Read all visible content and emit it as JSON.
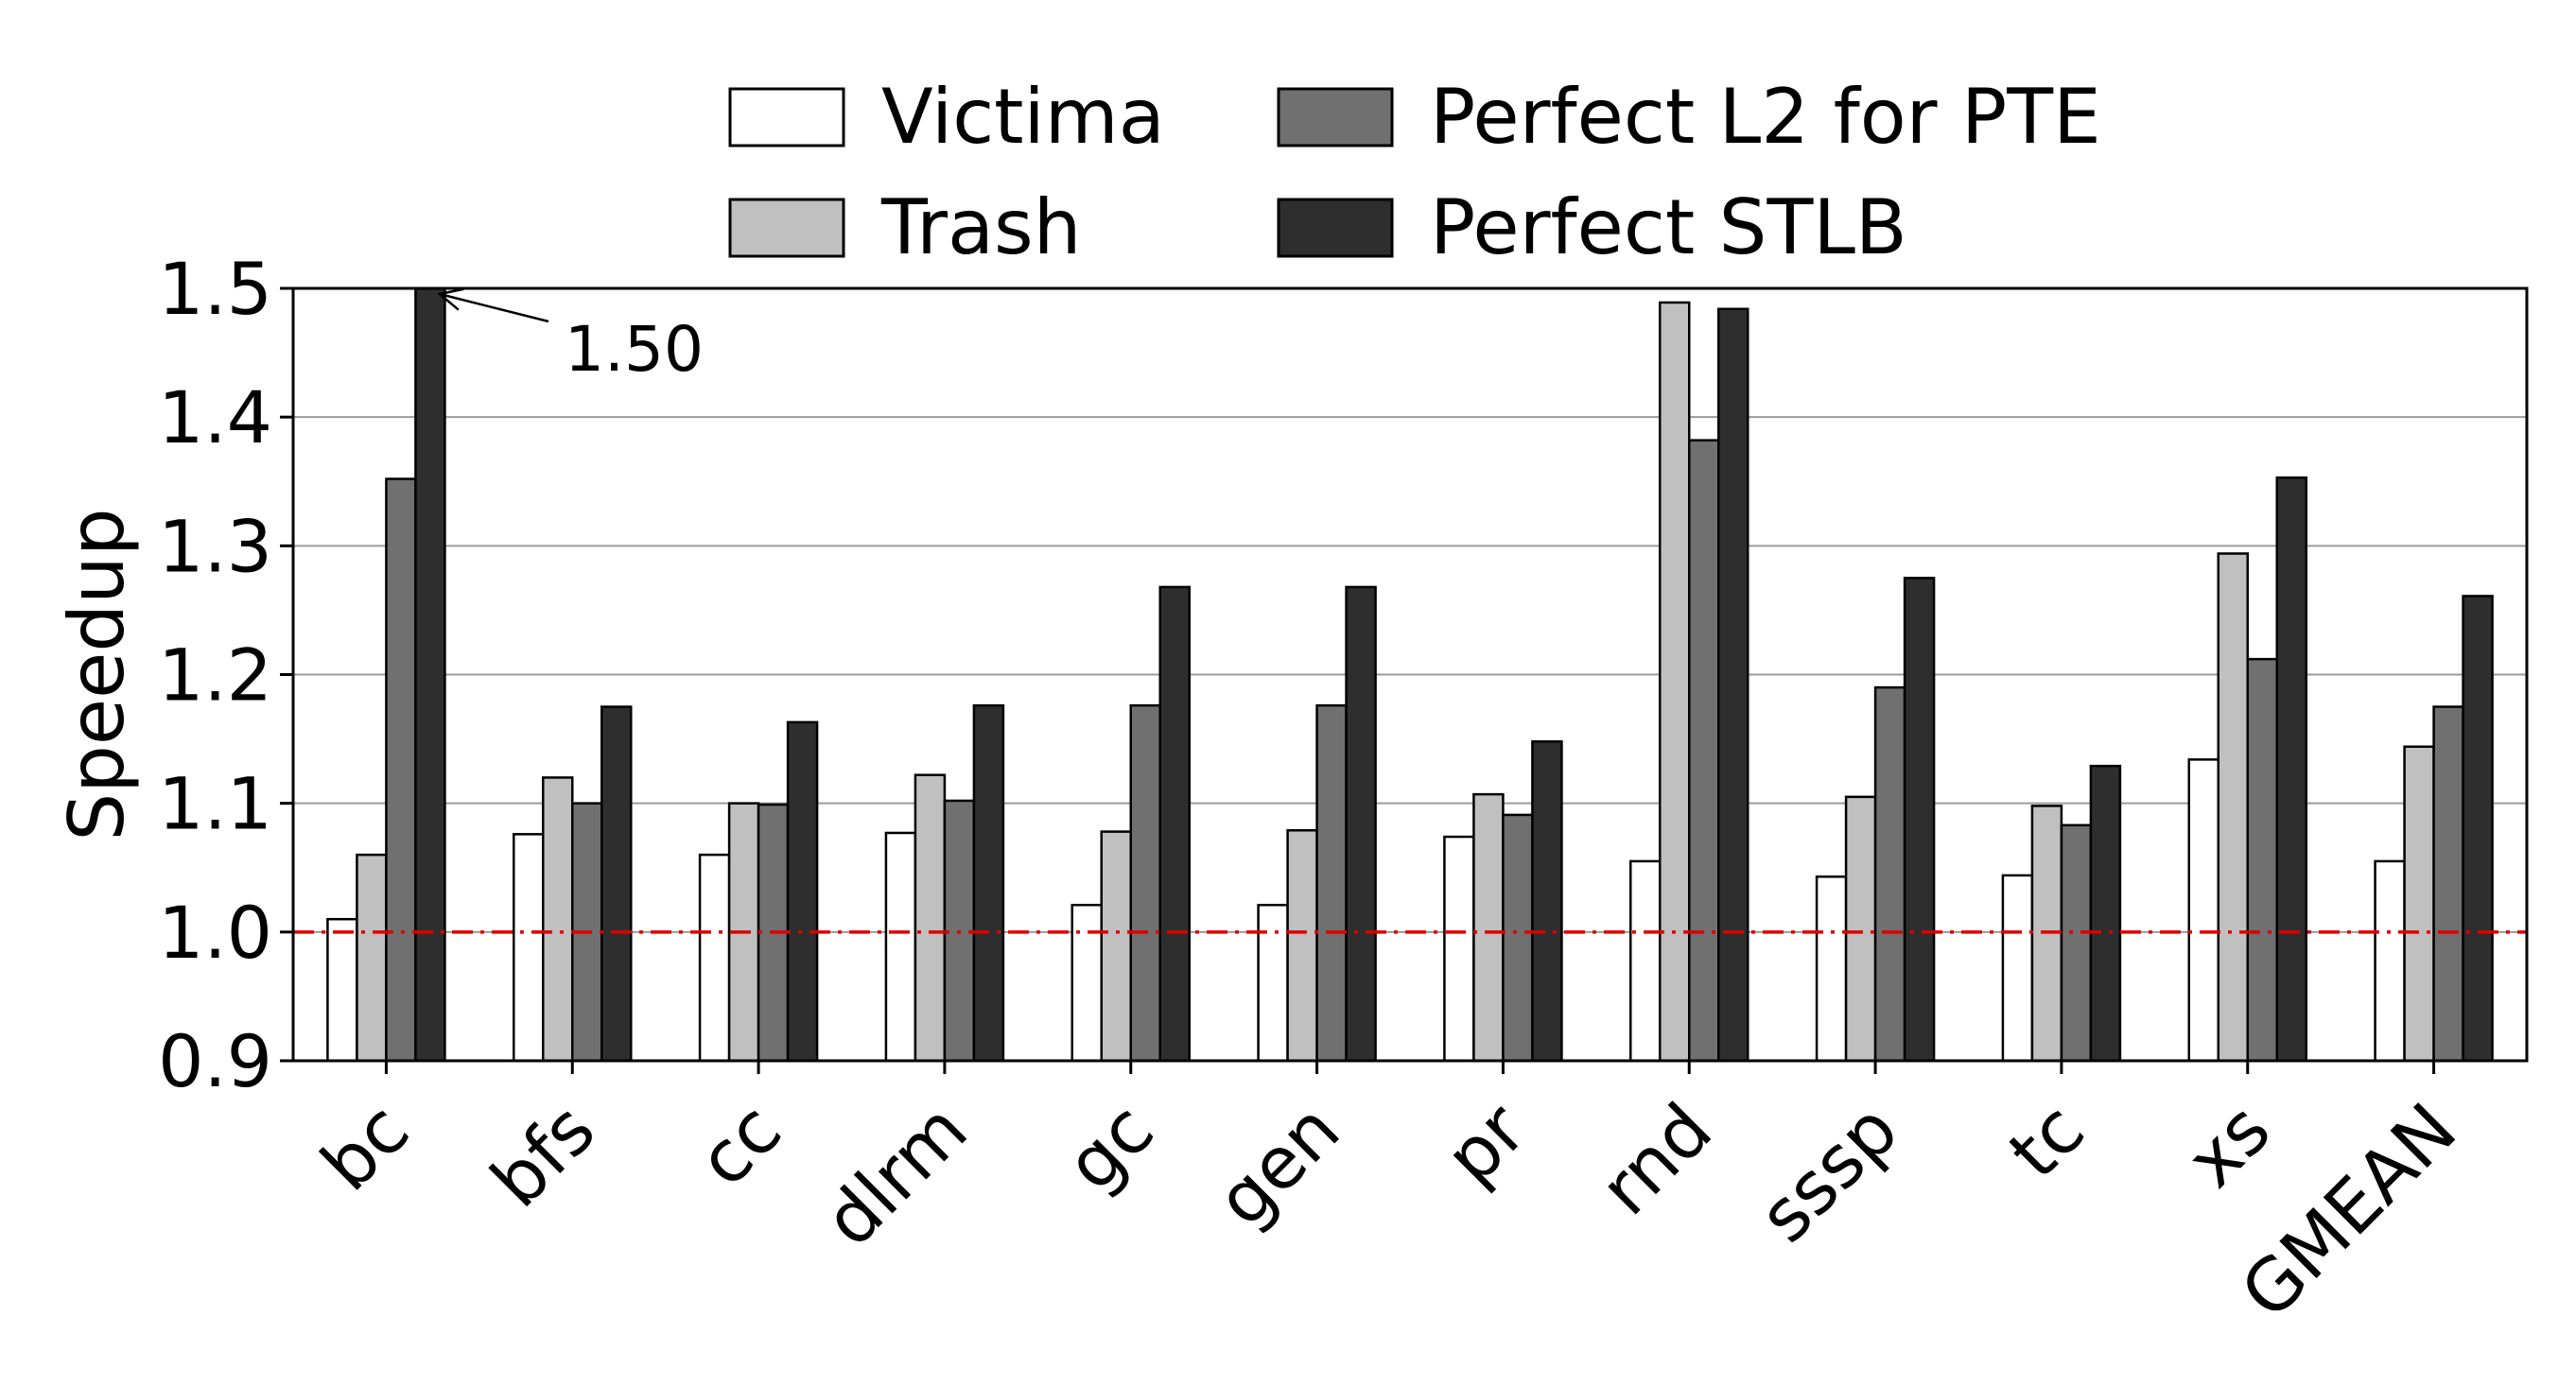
{
  "chart_data": {
    "type": "bar",
    "ylabel": "Speedup",
    "xlabel": "",
    "ylim": [
      0.9,
      1.5
    ],
    "yticks": [
      "0.9",
      "1.0",
      "1.1",
      "1.2",
      "1.3",
      "1.4",
      "1.5"
    ],
    "grid": "horizontal",
    "legend_position": "top-center",
    "categories": [
      "bc",
      "bfs",
      "cc",
      "dlrm",
      "gc",
      "gen",
      "pr",
      "rnd",
      "sssp",
      "tc",
      "xs",
      "GMEAN"
    ],
    "series": [
      {
        "name": "Victima",
        "color": "#ffffff",
        "values": [
          1.01,
          1.076,
          1.06,
          1.077,
          1.021,
          1.021,
          1.074,
          1.055,
          1.043,
          1.044,
          1.134,
          1.055
        ]
      },
      {
        "name": "Trash",
        "color": "#c0c0c0",
        "values": [
          1.06,
          1.12,
          1.1,
          1.122,
          1.078,
          1.079,
          1.107,
          1.489,
          1.105,
          1.098,
          1.294,
          1.144
        ]
      },
      {
        "name": "Perfect L2 for PTE",
        "color": "#707070",
        "values": [
          1.352,
          1.1,
          1.099,
          1.102,
          1.176,
          1.176,
          1.091,
          1.382,
          1.19,
          1.083,
          1.212,
          1.175
        ]
      },
      {
        "name": "Perfect STLB",
        "color": "#2e2e2e",
        "values": [
          1.5,
          1.175,
          1.163,
          1.176,
          1.268,
          1.268,
          1.148,
          1.484,
          1.275,
          1.129,
          1.353,
          1.261
        ]
      }
    ],
    "reference_line": {
      "value": 1.0,
      "color": "#e00000",
      "style": "dashed"
    },
    "annotations": [
      {
        "text": "1.50",
        "category": "bc",
        "series": "Perfect STLB"
      }
    ]
  }
}
